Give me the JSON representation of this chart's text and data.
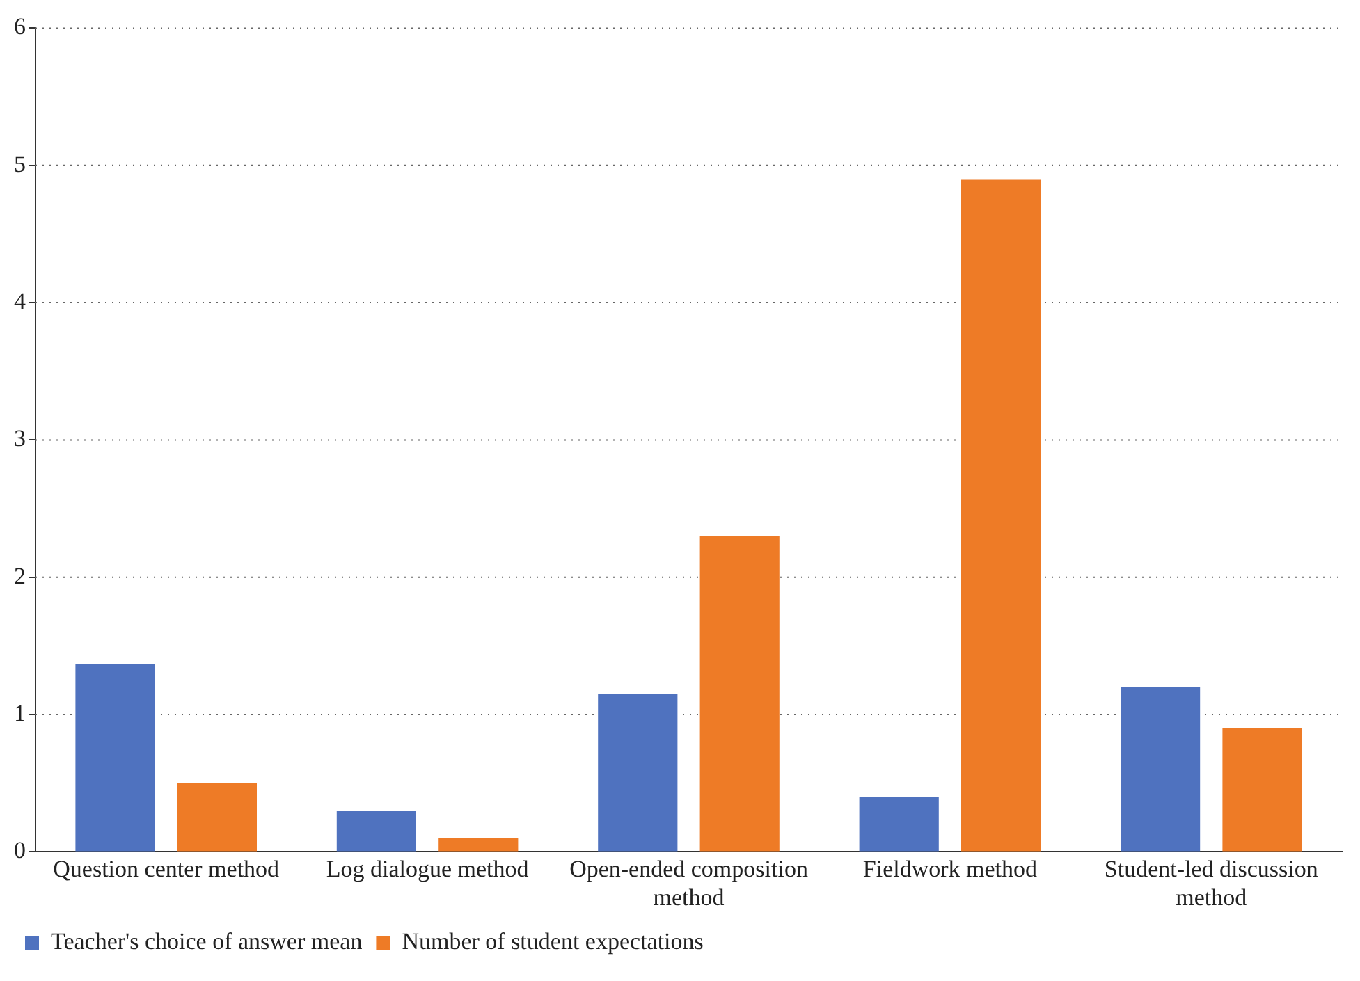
{
  "chart_data": {
    "type": "bar",
    "categories": [
      "Question center method",
      "Log dialogue method",
      "Open-ended composition method",
      "Fieldwork method",
      "Student-led discussion method"
    ],
    "series": [
      {
        "name": "Teacher's choice of answer mean",
        "color": "#4f72bf",
        "values": [
          1.37,
          0.3,
          1.15,
          0.4,
          1.2
        ]
      },
      {
        "name": "Number of student expectations",
        "color": "#ee7b26",
        "values": [
          0.5,
          0.1,
          2.3,
          4.9,
          0.9
        ]
      }
    ],
    "ylim": [
      0,
      6
    ],
    "yticks": [
      0,
      1,
      2,
      3,
      4,
      5,
      6
    ],
    "grid": "y",
    "legend": "bottom left"
  }
}
